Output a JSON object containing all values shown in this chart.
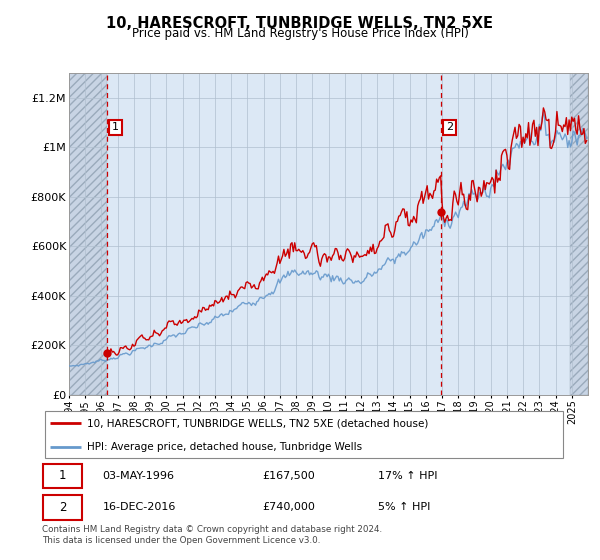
{
  "title": "10, HARESCROFT, TUNBRIDGE WELLS, TN2 5XE",
  "subtitle": "Price paid vs. HM Land Registry's House Price Index (HPI)",
  "legend_line1": "10, HARESCROFT, TUNBRIDGE WELLS, TN2 5XE (detached house)",
  "legend_line2": "HPI: Average price, detached house, Tunbridge Wells",
  "annotation1_label": "1",
  "annotation1_date": "03-MAY-1996",
  "annotation1_price": "£167,500",
  "annotation1_hpi": "17% ↑ HPI",
  "annotation1_year": 1996.35,
  "annotation1_value": 167500,
  "annotation2_label": "2",
  "annotation2_date": "16-DEC-2016",
  "annotation2_price": "£740,000",
  "annotation2_hpi": "5% ↑ HPI",
  "annotation2_year": 2016.96,
  "annotation2_value": 740000,
  "price_color": "#cc0000",
  "hpi_color": "#6699cc",
  "ylim": [
    0,
    1300000
  ],
  "yticks": [
    0,
    200000,
    400000,
    600000,
    800000,
    1000000,
    1200000
  ],
  "ytick_labels": [
    "£0",
    "£200K",
    "£400K",
    "£600K",
    "£800K",
    "£1M",
    "£1.2M"
  ],
  "xstart": 1994,
  "xend": 2026,
  "footer": "Contains HM Land Registry data © Crown copyright and database right 2024.\nThis data is licensed under the Open Government Licence v3.0."
}
